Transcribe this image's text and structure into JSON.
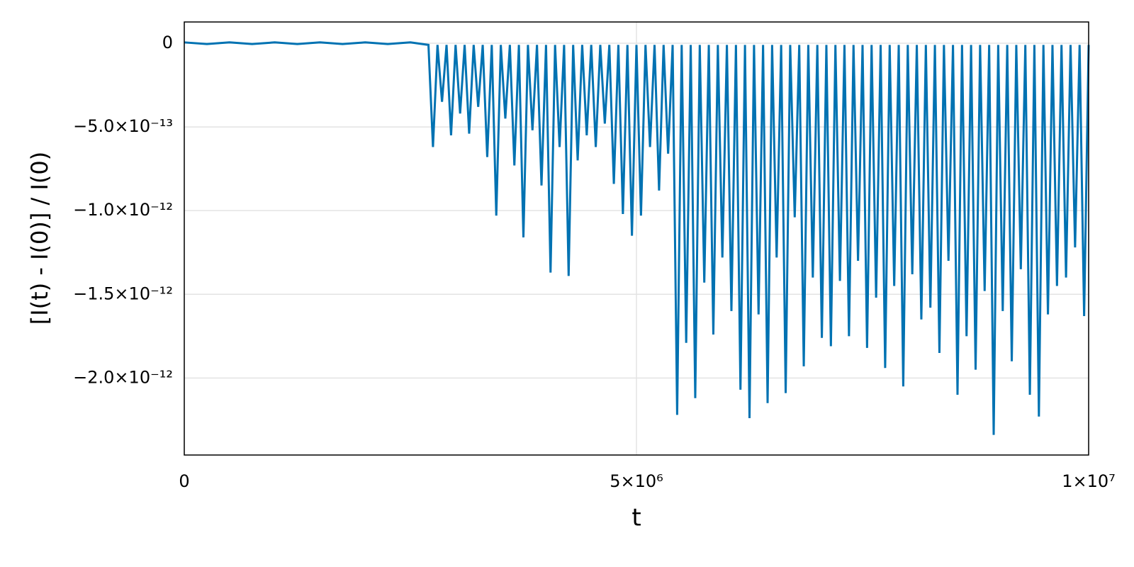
{
  "chart_data": {
    "type": "line",
    "xlabel": "t",
    "ylabel": "[I(t) - I(0)] / I(0)",
    "xlim": [
      0,
      10000000
    ],
    "ylim": [
      -2.46e-12,
      1.27e-13
    ],
    "xticks": [
      0,
      {
        "value": 5000000,
        "label": "5×10⁶"
      },
      {
        "value": 10000000,
        "label": "1×10⁷"
      }
    ],
    "yticks": [
      0,
      {
        "value": -5e-13,
        "label": "−5.0×10⁻¹³"
      },
      {
        "value": -1e-12,
        "label": "−1.0×10⁻¹²"
      },
      {
        "value": -1.5e-12,
        "label": "−1.5×10⁻¹²"
      },
      {
        "value": -2e-12,
        "label": "−2.0×10⁻¹²"
      }
    ],
    "grid": true,
    "x": [
      0,
      250000,
      500000,
      750000,
      1000000,
      1250000,
      1500000,
      1750000,
      2000000,
      2250000,
      2500000,
      2700000,
      2750000,
      2800000,
      2850000,
      2900000,
      2950000,
      3000000,
      3050000,
      3100000,
      3150000,
      3200000,
      3250000,
      3300000,
      3350000,
      3400000,
      3450000,
      3500000,
      3550000,
      3600000,
      3650000,
      3700000,
      3750000,
      3800000,
      3850000,
      3900000,
      3950000,
      4000000,
      4050000,
      4100000,
      4150000,
      4200000,
      4250000,
      4300000,
      4350000,
      4400000,
      4450000,
      4500000,
      4550000,
      4600000,
      4650000,
      4700000,
      4750000,
      4800000,
      4850000,
      4900000,
      4950000,
      5000000,
      5050000,
      5100000,
      5150000,
      5200000,
      5250000,
      5300000,
      5350000,
      5400000,
      5450000,
      5500000,
      5550000,
      5600000,
      5650000,
      5700000,
      5750000,
      5800000,
      5850000,
      5900000,
      5950000,
      6000000,
      6050000,
      6100000,
      6150000,
      6200000,
      6250000,
      6300000,
      6350000,
      6400000,
      6450000,
      6500000,
      6550000,
      6600000,
      6650000,
      6700000,
      6750000,
      6800000,
      6850000,
      6900000,
      6950000,
      7000000,
      7050000,
      7100000,
      7150000,
      7200000,
      7250000,
      7300000,
      7350000,
      7400000,
      7450000,
      7500000,
      7550000,
      7600000,
      7650000,
      7700000,
      7750000,
      7800000,
      7850000,
      7900000,
      7950000,
      8000000,
      8050000,
      8100000,
      8150000,
      8200000,
      8250000,
      8300000,
      8350000,
      8400000,
      8450000,
      8500000,
      8550000,
      8600000,
      8650000,
      8700000,
      8750000,
      8800000,
      8850000,
      8900000,
      8950000,
      9000000,
      9050000,
      9100000,
      9150000,
      9200000,
      9250000,
      9300000,
      9350000,
      9400000,
      9450000,
      9500000,
      9550000,
      9600000,
      9650000,
      9700000,
      9750000,
      9800000,
      9850000,
      9900000,
      9950000,
      10000000
    ],
    "series": [
      {
        "color": "#0072b2",
        "values": [
          5e-15,
          -5e-15,
          5e-15,
          -5e-15,
          5e-15,
          -5e-15,
          5e-15,
          -5e-15,
          5e-15,
          -5e-15,
          5e-15,
          -1e-14,
          -6.2e-13,
          -1e-14,
          -3.5e-13,
          -1e-14,
          -5.5e-13,
          -1e-14,
          -4.2e-13,
          -1e-14,
          -5.4e-13,
          -1e-14,
          -3.8e-13,
          -1e-14,
          -6.8e-13,
          -1e-14,
          -1.03e-12,
          -1e-14,
          -4.5e-13,
          -1e-14,
          -7.3e-13,
          -1e-14,
          -1.16e-12,
          -1e-14,
          -5.2e-13,
          -1e-14,
          -8.5e-13,
          -1e-14,
          -1.37e-12,
          -1e-14,
          -6.2e-13,
          -1e-14,
          -1.39e-12,
          -1e-14,
          -7e-13,
          -1e-14,
          -5.5e-13,
          -1e-14,
          -6.2e-13,
          -1e-14,
          -4.8e-13,
          -1e-14,
          -8.4e-13,
          -1e-14,
          -1.02e-12,
          -1e-14,
          -1.15e-12,
          -1e-14,
          -1.03e-12,
          -1e-14,
          -6.2e-13,
          -1e-14,
          -8.8e-13,
          -1e-14,
          -6.6e-13,
          -1e-14,
          -2.22e-12,
          -1e-14,
          -1.79e-12,
          -1e-14,
          -2.12e-12,
          -1e-14,
          -1.43e-12,
          -1e-14,
          -1.74e-12,
          -1e-14,
          -1.28e-12,
          -1e-14,
          -1.6e-12,
          -1e-14,
          -2.07e-12,
          -1e-14,
          -2.24e-12,
          -1e-14,
          -1.62e-12,
          -1e-14,
          -2.15e-12,
          -1e-14,
          -1.28e-12,
          -1e-14,
          -2.09e-12,
          -1e-14,
          -1.04e-12,
          -1e-14,
          -1.93e-12,
          -1e-14,
          -1.4e-12,
          -1e-14,
          -1.76e-12,
          -1e-14,
          -1.81e-12,
          -1e-14,
          -1.42e-12,
          -1e-14,
          -1.75e-12,
          -1e-14,
          -1.3e-12,
          -1e-14,
          -1.82e-12,
          -1e-14,
          -1.52e-12,
          -1e-14,
          -1.94e-12,
          -1e-14,
          -1.45e-12,
          -1e-14,
          -2.05e-12,
          -1e-14,
          -1.38e-12,
          -1e-14,
          -1.65e-12,
          -1e-14,
          -1.58e-12,
          -1e-14,
          -1.85e-12,
          -1e-14,
          -1.3e-12,
          -1e-14,
          -2.1e-12,
          -1e-14,
          -1.75e-12,
          -1e-14,
          -1.95e-12,
          -1e-14,
          -1.48e-12,
          -1e-14,
          -2.34e-12,
          -1e-14,
          -1.6e-12,
          -1e-14,
          -1.9e-12,
          -1e-14,
          -1.35e-12,
          -1e-14,
          -2.1e-12,
          -1e-14,
          -2.23e-12,
          -1e-14,
          -1.62e-12,
          -1e-14,
          -1.45e-12,
          -1e-14,
          -1.4e-12,
          -1e-14,
          -1.22e-12,
          -1e-14,
          -1.63e-12,
          -1e-14
        ]
      }
    ]
  }
}
